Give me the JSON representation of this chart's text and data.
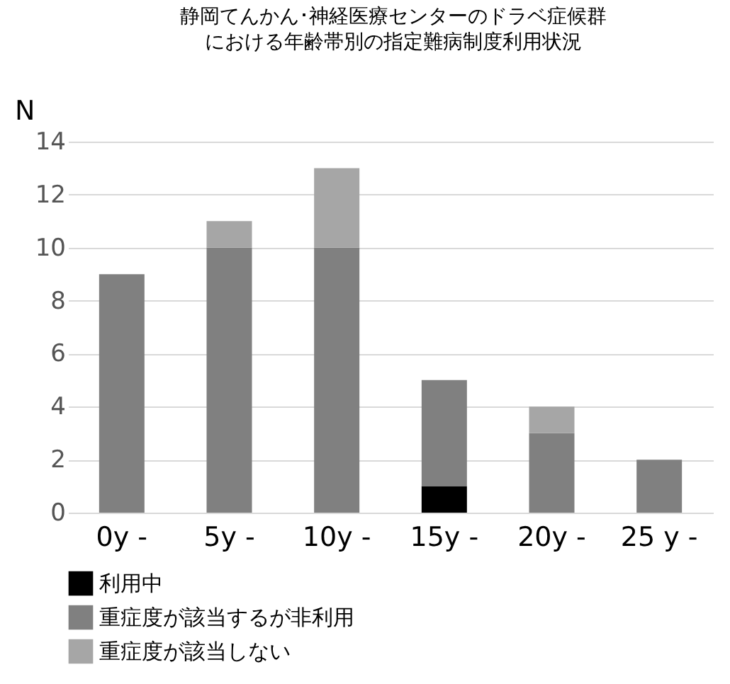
{
  "chart_data": {
    "type": "bar",
    "title": "静岡てんかん･神経医療センターのドラベ症候群における年齢帯別の指定難病制度利用状況",
    "ylabel": "N",
    "categories": [
      "0y  -",
      "5y  -",
      "10y  -",
      "15y  -",
      "20y  -",
      "25 y -"
    ],
    "stacked": true,
    "series": [
      {
        "name": "利用中",
        "color": "#000000",
        "values": [
          null,
          null,
          null,
          1,
          null,
          null
        ]
      },
      {
        "name": "重症度が該当するが非利用",
        "color": "#808080",
        "values": [
          9,
          10,
          10,
          4,
          3,
          2
        ]
      },
      {
        "name": "重症度が該当しない",
        "color": "#a6a6a6",
        "values": [
          null,
          1,
          3,
          null,
          1,
          null
        ]
      }
    ],
    "ylim": [
      0,
      14
    ],
    "yticks": [
      0,
      2,
      4,
      6,
      8,
      10,
      12,
      14
    ],
    "grid": "y",
    "legend": "bottom"
  }
}
